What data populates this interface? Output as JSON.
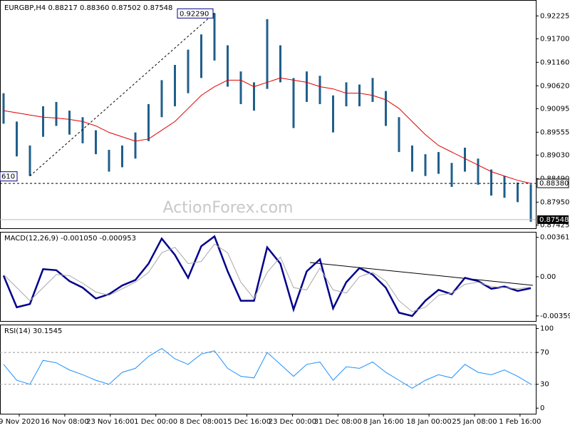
{
  "chart_data": [
    {
      "type": "ohlc",
      "title": "EURGBP,H4 0.88217 0.88360 0.87502 0.87548",
      "watermark": "ActionForex.com",
      "color": "#1f5f8b",
      "high": [
        0.9045,
        0.898,
        0.8925,
        0.9015,
        0.9025,
        0.9005,
        0.899,
        0.896,
        0.8915,
        0.8925,
        0.8955,
        0.902,
        0.9075,
        0.911,
        0.9145,
        0.918,
        0.9229,
        0.9155,
        0.9095,
        0.907,
        0.9215,
        0.9155,
        0.908,
        0.9095,
        0.9085,
        0.904,
        0.907,
        0.9065,
        0.908,
        0.905,
        0.899,
        0.8925,
        0.8905,
        0.891,
        0.8885,
        0.892,
        0.8895,
        0.887,
        0.8855,
        0.884,
        0.8836
      ],
      "low": [
        0.8975,
        0.89,
        0.8855,
        0.8945,
        0.897,
        0.895,
        0.893,
        0.8905,
        0.8865,
        0.8875,
        0.8895,
        0.8935,
        0.899,
        0.9015,
        0.9045,
        0.908,
        0.912,
        0.906,
        0.902,
        0.9005,
        0.9055,
        0.907,
        0.8965,
        0.9025,
        0.902,
        0.8955,
        0.9015,
        0.9015,
        0.9025,
        0.897,
        0.891,
        0.8865,
        0.8855,
        0.886,
        0.883,
        0.8865,
        0.8835,
        0.881,
        0.8805,
        0.8795,
        0.875
      ],
      "ma": {
        "color": "#e00000",
        "values": [
          0.9005,
          0.9,
          0.8995,
          0.899,
          0.8988,
          0.8985,
          0.898,
          0.897,
          0.8955,
          0.8945,
          0.8935,
          0.894,
          0.896,
          0.898,
          0.901,
          0.904,
          0.906,
          0.9075,
          0.9075,
          0.906,
          0.907,
          0.908,
          0.9075,
          0.907,
          0.906,
          0.9055,
          0.9045,
          0.9045,
          0.904,
          0.903,
          0.901,
          0.898,
          0.895,
          0.8925,
          0.891,
          0.8895,
          0.888,
          0.8865,
          0.8855,
          0.8845,
          0.8838
        ]
      },
      "high_label": "0.92290",
      "low_label": "610",
      "price_line": {
        "value": 0.8838,
        "label": "0.88380"
      },
      "last_price": {
        "value": 0.87548,
        "label": "0.87548"
      },
      "ylim": [
        0.8735,
        0.9259
      ],
      "yticks": [
        0.92225,
        {
          "value": 0.917,
          "label": "0.91700"
        },
        {
          "value": 0.9116,
          "label": "0.91160"
        },
        {
          "value": 0.9062,
          "label": "0.90620"
        },
        0.90095,
        0.89555,
        {
          "value": 0.8903,
          "label": "0.89030"
        },
        {
          "value": 0.8849,
          "label": "0.88490"
        },
        {
          "value": 0.8795,
          "label": "0.87950"
        },
        0.87425
      ],
      "x_labels": [
        "9 Nov 2020",
        "16 Nov 08:00",
        "23 Nov 16:00",
        "1 Dec 00:00",
        "8 Dec 08:00",
        "15 Dec 16:00",
        "23 Dec 00:00",
        "31 Dec 08:00",
        "8 Jan 16:00",
        "18 Jan 00:00",
        "25 Jan 08:00",
        "1 Feb 16:00"
      ]
    },
    {
      "type": "macd",
      "title": "MACD(12,26,9) -0.001050 -0.000953",
      "series": [
        {
          "color": "#00008b",
          "values": [
            0.0001,
            -0.0028,
            -0.0025,
            0.0007,
            0.0006,
            -0.0004,
            -0.001,
            -0.002,
            -0.0016,
            -0.0008,
            -0.0003,
            0.0012,
            0.0035,
            0.002,
            -0.0001,
            0.0028,
            0.0037,
            0.0005,
            -0.0022,
            -0.0022,
            0.0027,
            0.0012,
            -0.003,
            0.0005,
            0.0016,
            -0.0029,
            -0.0005,
            0.0008,
            0.0002,
            -0.001,
            -0.0033,
            -0.0036,
            -0.0022,
            -0.0012,
            -0.0016,
            -0.0001,
            -0.0004,
            -0.0011,
            -0.0009,
            -0.0013,
            -0.00105
          ]
        },
        {
          "color": "#a8a8a8",
          "values": [
            0.0002,
            -0.001,
            -0.0022,
            -0.001,
            0.0002,
            0.0001,
            -0.0006,
            -0.0014,
            -0.0017,
            -0.0011,
            -0.0005,
            0.0004,
            0.0022,
            0.0027,
            0.0012,
            0.0014,
            0.003,
            0.0022,
            -0.0005,
            -0.002,
            0.0004,
            0.0018,
            -0.001,
            -0.0012,
            0.0008,
            -0.0012,
            -0.0015,
            0,
            0.0004,
            -0.0004,
            -0.0022,
            -0.0032,
            -0.0028,
            -0.0017,
            -0.0015,
            -0.0007,
            -0.0005,
            -0.0009,
            -0.001,
            -0.0011,
            -0.000953
          ]
        }
      ],
      "ylim": [
        -0.00406,
        0.00412
      ],
      "yticks": [
        0.003615,
        {
          "value": 0,
          "label": "0.00"
        },
        -0.003592
      ]
    },
    {
      "type": "rsi",
      "title": "RSI(14) 30.1545",
      "series": [
        {
          "color": "#1e90ff",
          "values": [
            55,
            35,
            30,
            60,
            57,
            48,
            42,
            35,
            30,
            45,
            50,
            65,
            75,
            62,
            55,
            68,
            72,
            50,
            40,
            38,
            70,
            55,
            40,
            55,
            58,
            35,
            52,
            50,
            58,
            45,
            35,
            25,
            35,
            42,
            38,
            55,
            45,
            42,
            48,
            40,
            30.1545
          ]
        }
      ],
      "levels": [
        70,
        30
      ],
      "ylim": [
        -7,
        105
      ],
      "yticks": [
        100,
        70,
        30,
        0
      ]
    }
  ]
}
